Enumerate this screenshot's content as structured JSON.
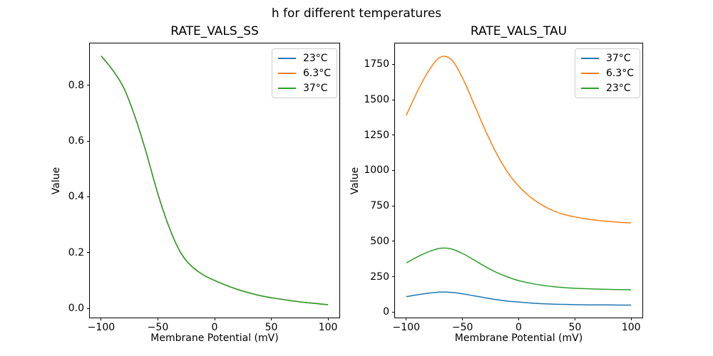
{
  "suptitle": "h for different temperatures",
  "colors": {
    "blue": "#1f77b4",
    "orange": "#ff7f0e",
    "green": "#2ca02c",
    "axis": "#000000",
    "legend_border": "#cccccc",
    "background": "#ffffff"
  },
  "chart_data": [
    {
      "type": "line",
      "title": "RATE_VALS_SS",
      "xlabel": "Membrane Potential (mV)",
      "ylabel": "Value",
      "grid": false,
      "legend_position": "upper right",
      "x": [
        -100,
        -90,
        -80,
        -70,
        -60,
        -50,
        -40,
        -30,
        -20,
        -10,
        0,
        10,
        20,
        30,
        40,
        50,
        60,
        70,
        80,
        90,
        100
      ],
      "series": [
        {
          "name": "23°C",
          "color": "#1f77b4",
          "values": [
            0.905,
            0.855,
            0.79,
            0.685,
            0.555,
            0.41,
            0.29,
            0.2,
            0.15,
            0.12,
            0.1,
            0.083,
            0.068,
            0.056,
            0.046,
            0.038,
            0.032,
            0.026,
            0.021,
            0.017,
            0.013
          ]
        },
        {
          "name": "6.3°C",
          "color": "#ff7f0e",
          "values": [
            0.905,
            0.855,
            0.79,
            0.685,
            0.555,
            0.41,
            0.29,
            0.2,
            0.15,
            0.12,
            0.1,
            0.083,
            0.068,
            0.056,
            0.046,
            0.038,
            0.032,
            0.026,
            0.021,
            0.017,
            0.013
          ]
        },
        {
          "name": "37°C",
          "color": "#2ca02c",
          "values": [
            0.905,
            0.855,
            0.79,
            0.685,
            0.555,
            0.41,
            0.29,
            0.2,
            0.15,
            0.12,
            0.1,
            0.083,
            0.068,
            0.056,
            0.046,
            0.038,
            0.032,
            0.026,
            0.021,
            0.017,
            0.013
          ]
        }
      ],
      "xlim": [
        -110,
        110
      ],
      "ylim": [
        -0.033,
        0.95
      ],
      "xticks": [
        -100,
        -50,
        0,
        50,
        100
      ],
      "xtick_labels": [
        "−100",
        "−50",
        "0",
        "50",
        "100"
      ],
      "yticks": [
        0.0,
        0.2,
        0.4,
        0.6,
        0.8
      ],
      "ytick_labels": [
        "0.0",
        "0.2",
        "0.4",
        "0.6",
        "0.8"
      ]
    },
    {
      "type": "line",
      "title": "RATE_VALS_TAU",
      "xlabel": "Membrane Potential (mV)",
      "ylabel": "Value",
      "grid": false,
      "legend_position": "upper right",
      "x": [
        -100,
        -90,
        -80,
        -70,
        -60,
        -50,
        -40,
        -30,
        -20,
        -10,
        0,
        10,
        20,
        30,
        40,
        50,
        60,
        70,
        80,
        90,
        100
      ],
      "series": [
        {
          "name": "37°C",
          "color": "#1f77b4",
          "values": [
            109,
            122,
            133,
            141,
            139,
            129,
            115,
            101,
            88,
            77,
            70,
            64,
            59,
            56,
            54,
            52,
            51,
            50,
            50,
            49,
            49
          ]
        },
        {
          "name": "6.3°C",
          "color": "#ff7f0e",
          "values": [
            1390,
            1560,
            1705,
            1800,
            1785,
            1655,
            1475,
            1290,
            1125,
            990,
            890,
            815,
            760,
            718,
            690,
            672,
            658,
            648,
            640,
            634,
            630
          ]
        },
        {
          "name": "23°C",
          "color": "#2ca02c",
          "values": [
            347,
            390,
            426,
            450,
            446,
            414,
            369,
            322,
            281,
            248,
            222,
            204,
            190,
            180,
            173,
            168,
            165,
            162,
            160,
            158,
            157
          ]
        }
      ],
      "xlim": [
        -110,
        110
      ],
      "ylim": [
        -39,
        1898
      ],
      "xticks": [
        -100,
        -50,
        0,
        50,
        100
      ],
      "xtick_labels": [
        "−100",
        "−50",
        "0",
        "50",
        "100"
      ],
      "yticks": [
        0,
        250,
        500,
        750,
        1000,
        1250,
        1500,
        1750
      ],
      "ytick_labels": [
        "0",
        "250",
        "500",
        "750",
        "1000",
        "1250",
        "1500",
        "1750"
      ]
    }
  ]
}
